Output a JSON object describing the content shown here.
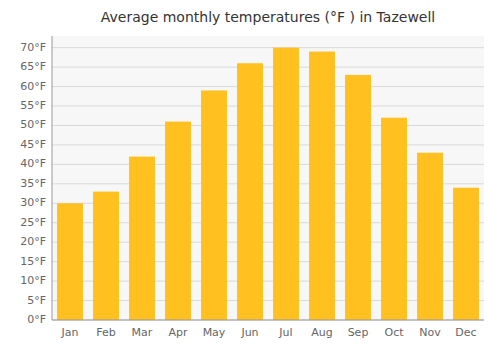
{
  "chart_data": {
    "type": "bar",
    "title": "Average monthly temperatures (°F ) in Tazewell",
    "categories": [
      "Jan",
      "Feb",
      "Mar",
      "Apr",
      "May",
      "Jun",
      "Jul",
      "Aug",
      "Sep",
      "Oct",
      "Nov",
      "Dec"
    ],
    "values": [
      30,
      33,
      42,
      51,
      59,
      66,
      70,
      69,
      63,
      52,
      43,
      34
    ],
    "color": "#FFC020",
    "ylim": [
      0,
      73
    ],
    "yticks": [
      {
        "value": 0,
        "label": "0°F"
      },
      {
        "value": 5,
        "label": "5°F"
      },
      {
        "value": 10,
        "label": "10°F"
      },
      {
        "value": 15,
        "label": "15°F"
      },
      {
        "value": 20,
        "label": "20°F"
      },
      {
        "value": 25,
        "label": "25°F"
      },
      {
        "value": 30,
        "label": "30°F"
      },
      {
        "value": 35,
        "label": "35°F"
      },
      {
        "value": 40,
        "label": "40°F"
      },
      {
        "value": 45,
        "label": "45°F"
      },
      {
        "value": 50,
        "label": "50°F"
      },
      {
        "value": 55,
        "label": "55°F"
      },
      {
        "value": 60,
        "label": "60°F"
      },
      {
        "value": 65,
        "label": "65°F"
      },
      {
        "value": 70,
        "label": "70°F"
      }
    ],
    "grid": true
  }
}
